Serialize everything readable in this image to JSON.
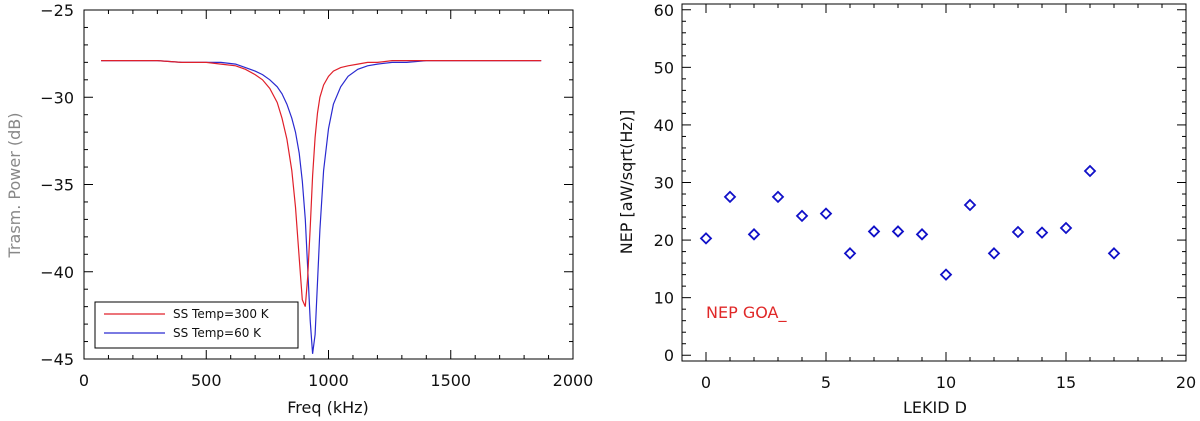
{
  "chart_data": [
    {
      "type": "line",
      "title": "",
      "xlabel": "Freq (kHz)",
      "ylabel": "Trasm. Power (dB)",
      "xlim": [
        0,
        2000
      ],
      "ylim": [
        -45,
        -25
      ],
      "xticks": [
        0,
        500,
        1000,
        1500,
        2000
      ],
      "yticks": [
        -25,
        -30,
        -35,
        -40,
        -45
      ],
      "grid": false,
      "legend_position": "bottom-left",
      "x": [
        70,
        200,
        300,
        400,
        500,
        560,
        620,
        660,
        700,
        730,
        760,
        790,
        810,
        830,
        850,
        865,
        880,
        893,
        905,
        915,
        925,
        935,
        945,
        955,
        965,
        980,
        1000,
        1020,
        1050,
        1080,
        1120,
        1160,
        1200,
        1260,
        1320,
        1400,
        1500,
        1600,
        1700,
        1870
      ],
      "series": [
        {
          "name": "SS Temp=300 K",
          "color": "#e0202a",
          "values": [
            -27.9,
            -27.9,
            -27.9,
            -28.0,
            -28.0,
            -28.1,
            -28.2,
            -28.4,
            -28.7,
            -29.0,
            -29.5,
            -30.3,
            -31.2,
            -32.4,
            -34.2,
            -36.3,
            -39.2,
            -41.6,
            -42.0,
            -40.3,
            -37.5,
            -34.5,
            -32.3,
            -30.9,
            -30.0,
            -29.3,
            -28.8,
            -28.5,
            -28.3,
            -28.2,
            -28.1,
            -28.0,
            -28.0,
            -27.9,
            -27.9,
            -27.9,
            -27.9,
            -27.9,
            -27.9,
            -27.9
          ]
        },
        {
          "name": "SS Temp=60 K",
          "color": "#2a2ad0",
          "values": [
            -27.9,
            -27.9,
            -27.9,
            -28.0,
            -28.0,
            -28.0,
            -28.1,
            -28.3,
            -28.5,
            -28.7,
            -29.0,
            -29.4,
            -29.8,
            -30.4,
            -31.2,
            -32.0,
            -33.2,
            -34.8,
            -37.0,
            -39.8,
            -42.8,
            -44.7,
            -43.6,
            -40.6,
            -37.6,
            -34.2,
            -31.8,
            -30.4,
            -29.4,
            -28.8,
            -28.4,
            -28.2,
            -28.1,
            -28.0,
            -28.0,
            -27.9,
            -27.9,
            -27.9,
            -27.9,
            -27.9
          ]
        }
      ]
    },
    {
      "type": "scatter",
      "title": "",
      "xlabel": "LEKID  D",
      "ylabel": "NEP [aW/sqrt(Hz)]",
      "xlim": [
        -1,
        20
      ],
      "ylim": [
        -1,
        61
      ],
      "xticks": [
        0,
        5,
        10,
        15,
        20
      ],
      "yticks": [
        0,
        10,
        20,
        30,
        40,
        50,
        60
      ],
      "grid": false,
      "marker": "diamond",
      "color": "#1010c8",
      "points": [
        {
          "x": 0,
          "y": 20.3
        },
        {
          "x": 1,
          "y": 27.5
        },
        {
          "x": 2,
          "y": 21.0
        },
        {
          "x": 3,
          "y": 27.5
        },
        {
          "x": 4,
          "y": 24.2
        },
        {
          "x": 5,
          "y": 24.6
        },
        {
          "x": 6,
          "y": 17.7
        },
        {
          "x": 7,
          "y": 21.5
        },
        {
          "x": 8,
          "y": 21.5
        },
        {
          "x": 9,
          "y": 21.0
        },
        {
          "x": 10,
          "y": 14.0
        },
        {
          "x": 11,
          "y": 26.1
        },
        {
          "x": 12,
          "y": 17.7
        },
        {
          "x": 13,
          "y": 21.4
        },
        {
          "x": 14,
          "y": 21.3
        },
        {
          "x": 15,
          "y": 22.1
        },
        {
          "x": 16,
          "y": 32.0
        },
        {
          "x": 17,
          "y": 17.7
        }
      ],
      "annotation": {
        "text": "NEP GOA_",
        "color": "#e02828",
        "x": 0,
        "y": 7.5
      }
    }
  ]
}
